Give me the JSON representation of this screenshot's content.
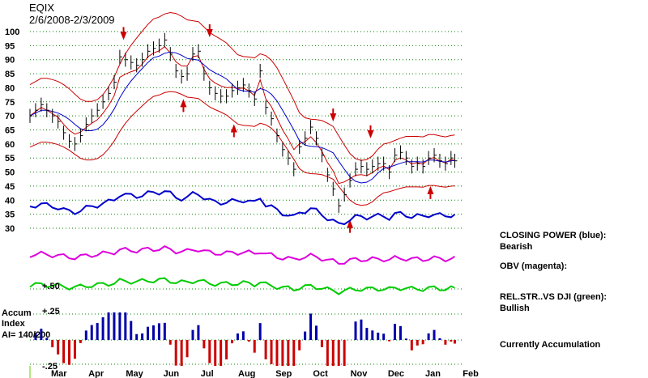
{
  "header": {
    "ticker": "EQIX",
    "date_range": "2/6/2008-2/3/2009"
  },
  "side_labels": {
    "closing_power": "CLOSING POWER (blue):",
    "closing_power_value": "Bearish",
    "obv": "OBV (magenta):",
    "rel_str": "REL.STR..VS DJI (green):",
    "rel_str_value": "Bullish",
    "accumulation": "Currently Accumulation"
  },
  "accum_panel": {
    "title_line1": "Accum",
    "title_line2": "Index",
    "ai_value": "AI= 140/200",
    "plus_50": "+.50",
    "plus_25": "+.25",
    "minus_25": "-.25"
  },
  "colors": {
    "price": "#000000",
    "bands": "#cc0000",
    "ma": "#0000cc",
    "closing_power": "#0000cc",
    "obv": "#dd00dd",
    "rel_str": "#00cc00",
    "accum_pos": "#0000aa",
    "accum_neg": "#cc0000",
    "arrow": "#cc0000",
    "grid": "#008000"
  },
  "chart_data": {
    "type": "line",
    "title": "EQIX",
    "subtitle": "2/6/2008-2/3/2009",
    "y_ticks": [
      100,
      95,
      90,
      85,
      80,
      75,
      70,
      65,
      60,
      55,
      50,
      45,
      40,
      35,
      30
    ],
    "ylim": [
      30,
      100
    ],
    "x_ticks": [
      "Mar",
      "Apr",
      "May",
      "Jun",
      "Jul",
      "Aug",
      "Sep",
      "Oct",
      "Nov",
      "Dec",
      "Jan",
      "Feb"
    ],
    "x_tick_pos": [
      1,
      2,
      3,
      4,
      5,
      6,
      7,
      8,
      9,
      10,
      11,
      12
    ],
    "xlim": [
      0.2,
      11.8
    ],
    "grid": true,
    "price_series": {
      "x": [
        0.2,
        0.35,
        0.5,
        0.65,
        0.8,
        0.95,
        1.1,
        1.25,
        1.4,
        1.55,
        1.7,
        1.85,
        2.0,
        2.15,
        2.3,
        2.45,
        2.6,
        2.75,
        2.9,
        3.05,
        3.2,
        3.35,
        3.5,
        3.65,
        3.8,
        3.95,
        4.1,
        4.25,
        4.4,
        4.55,
        4.7,
        4.85,
        5.0,
        5.15,
        5.3,
        5.45,
        5.6,
        5.75,
        5.9,
        6.05,
        6.2,
        6.35,
        6.5,
        6.65,
        6.8,
        6.95,
        7.1,
        7.25,
        7.4,
        7.55,
        7.7,
        7.85,
        8.0,
        8.15,
        8.3,
        8.45,
        8.6,
        8.75,
        8.9,
        9.05,
        9.2,
        9.35,
        9.5,
        9.65,
        9.8,
        9.95,
        10.1,
        10.25,
        10.4,
        10.55,
        10.7,
        10.85,
        11.0,
        11.15,
        11.3,
        11.45,
        11.55
      ],
      "values": [
        70,
        72,
        74,
        72,
        70,
        68,
        64,
        61,
        60,
        63,
        67,
        70,
        72,
        75,
        78,
        82,
        91,
        90,
        89,
        88,
        90,
        93,
        94,
        95,
        97,
        92,
        86,
        84,
        85,
        92,
        93,
        85,
        80,
        78,
        77,
        77,
        79,
        80,
        81,
        79,
        76,
        86,
        73,
        69,
        63,
        58,
        55,
        51,
        59,
        62,
        66,
        62,
        56,
        49,
        44,
        38,
        42,
        47,
        51,
        52,
        51,
        52,
        53,
        53,
        50,
        56,
        57,
        55,
        52,
        53,
        52,
        55,
        56,
        54,
        53,
        55,
        54
      ]
    },
    "arrows": [
      {
        "x": 2.7,
        "dir": "down",
        "value": 97
      },
      {
        "x": 4.3,
        "dir": "up",
        "value": 76
      },
      {
        "x": 5.0,
        "dir": "down",
        "value": 98
      },
      {
        "x": 5.65,
        "dir": "up",
        "value": 67
      },
      {
        "x": 8.3,
        "dir": "down",
        "value": 68
      },
      {
        "x": 8.75,
        "dir": "up",
        "value": 33
      },
      {
        "x": 9.3,
        "dir": "down",
        "value": 62
      },
      {
        "x": 10.9,
        "dir": "up",
        "value": 45
      }
    ],
    "indicators": [
      {
        "name": "CLOSING POWER (blue)",
        "status": "Bearish"
      },
      {
        "name": "OBV (magenta)",
        "status": ""
      },
      {
        "name": "REL.STR..VS DJI (green)",
        "status": "Bullish"
      },
      {
        "name": "Accum Index",
        "status": "AI= 140/200"
      }
    ]
  }
}
